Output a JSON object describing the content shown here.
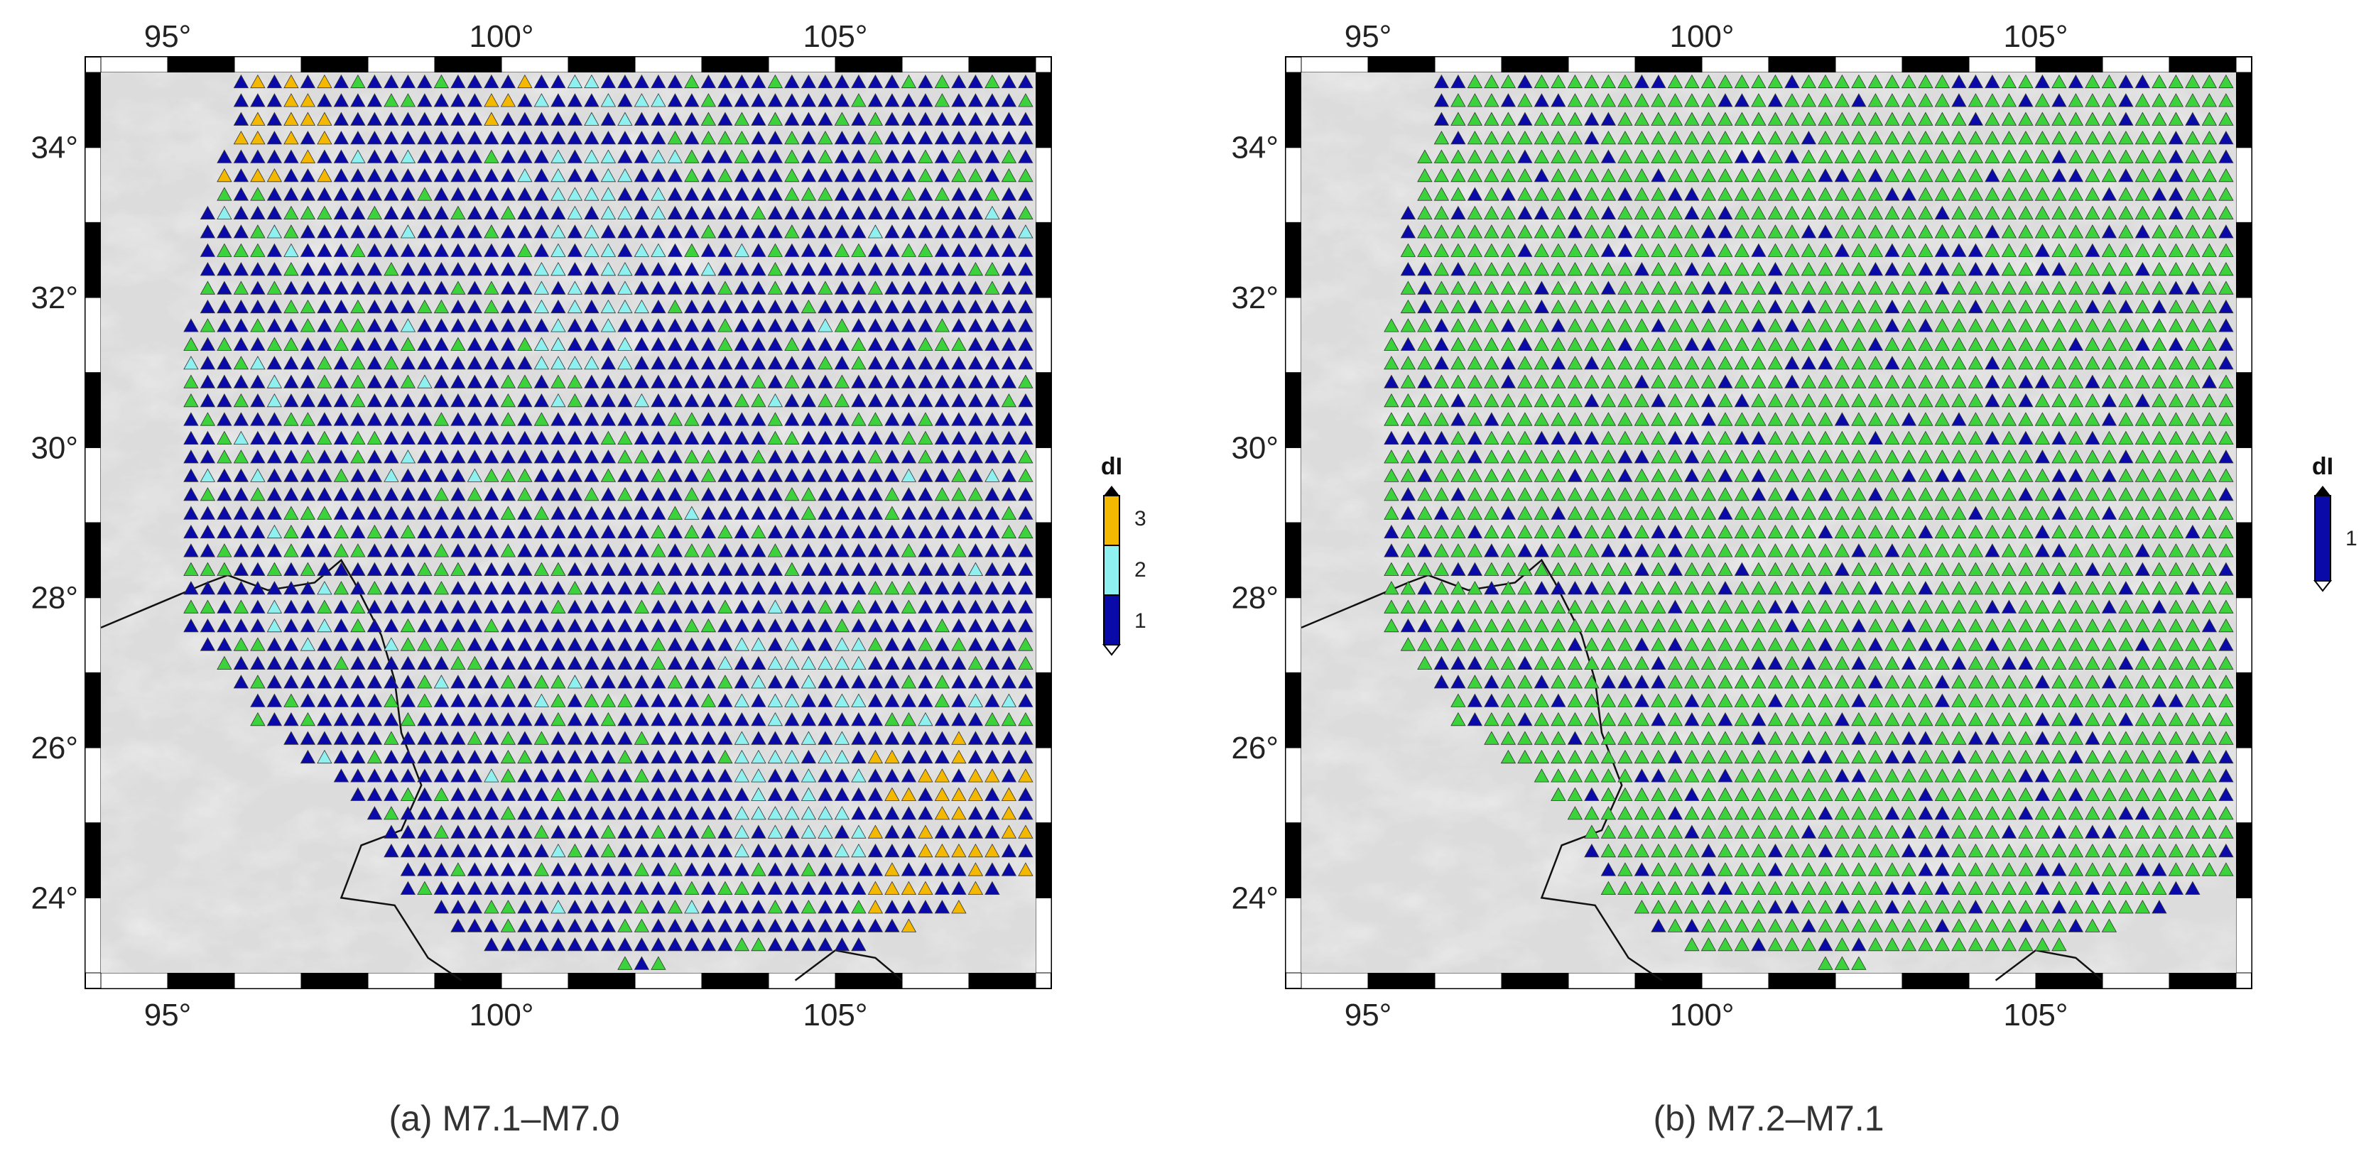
{
  "panels": [
    {
      "id": "a",
      "caption": "(a) M7.1–M7.0",
      "lon_ticks": [
        "95°",
        "100°",
        "105°"
      ],
      "lat_ticks": [
        "24°",
        "26°",
        "28°",
        "30°",
        "32°",
        "34°"
      ],
      "legend": {
        "title": "dI",
        "entries": [
          {
            "label": "3",
            "color": "#f5b800"
          },
          {
            "label": "2",
            "color": "#8ff0f0"
          },
          {
            "label": "1",
            "color": "#0a0aa8"
          }
        ]
      }
    },
    {
      "id": "b",
      "caption": "(b) M7.2–M7.1",
      "lon_ticks": [
        "95°",
        "100°",
        "105°"
      ],
      "lat_ticks": [
        "24°",
        "26°",
        "28°",
        "30°",
        "32°",
        "34°"
      ],
      "legend": {
        "title": "dI",
        "entries": [
          {
            "label": "1",
            "color": "#0a0aa8"
          }
        ]
      }
    }
  ],
  "map_extent": {
    "lon": [
      94,
      108
    ],
    "lat": [
      23,
      35
    ]
  },
  "colors": {
    "green": "#3cd23c",
    "blue": "#0a0aa8",
    "cyan": "#8ff0f0",
    "orange": "#f5b800",
    "relief": "#d9d9d9"
  }
}
